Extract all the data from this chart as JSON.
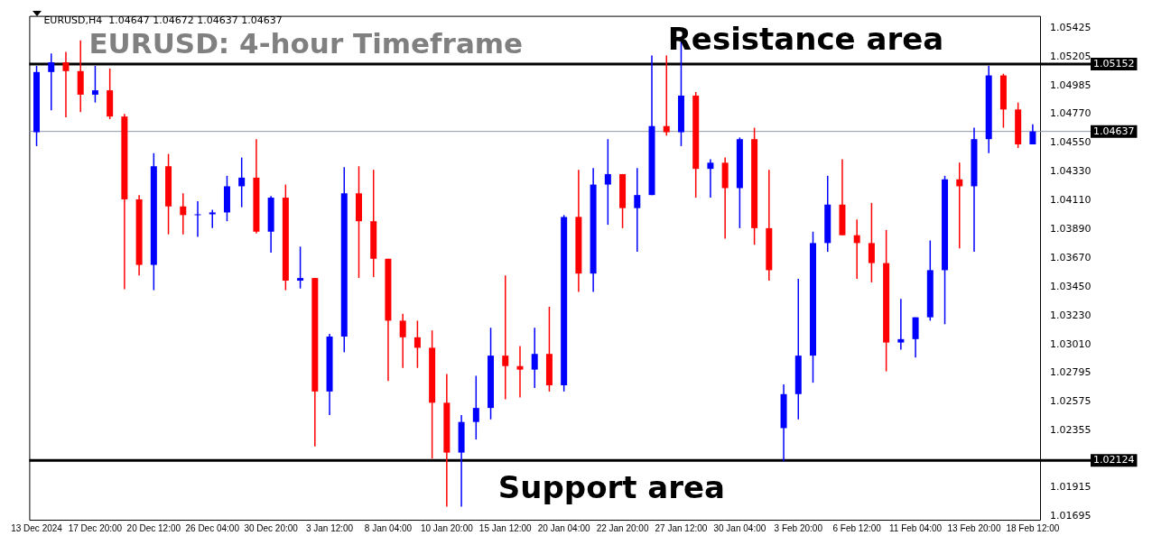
{
  "chart_data": {
    "type": "candlestick",
    "title": "EURUSD: 4-hour Timeframe",
    "annotations": [
      "EURUSD,H4  1.04647 1.04672 1.04637 1.04637",
      "Resistance area",
      "Support area"
    ],
    "categories": [
      "13 Dec 2024",
      null,
      null,
      null,
      "17 Dec 20:00",
      null,
      null,
      null,
      "20 Dec 12:00",
      null,
      null,
      null,
      "26 Dec 04:00",
      null,
      null,
      null,
      "30 Dec 20:00",
      null,
      null,
      null,
      "3 Jan 12:00",
      null,
      null,
      null,
      "8 Jan 04:00",
      null,
      null,
      null,
      "10 Jan 20:00",
      null,
      null,
      null,
      "15 Jan 12:00",
      null,
      null,
      null,
      "20 Jan 04:00",
      null,
      null,
      null,
      "22 Jan 20:00",
      null,
      null,
      null,
      "27 Jan 12:00",
      null,
      null,
      null,
      "30 Jan 04:00",
      null,
      null,
      null,
      "3 Feb 20:00",
      null,
      null,
      null,
      "6 Feb 12:00",
      null,
      null,
      null,
      "11 Feb 04:00",
      null,
      null,
      null,
      "13 Feb 20:00",
      null,
      null,
      null,
      "18 Feb 12:00"
    ],
    "ohlc": [
      [
        1.04631,
        1.05138,
        1.04525,
        1.05091
      ],
      [
        1.05091,
        1.05232,
        1.04798,
        1.05165
      ],
      [
        1.05165,
        1.05245,
        1.04745,
        1.05098
      ],
      [
        1.05098,
        1.05332,
        1.04785,
        1.04918
      ],
      [
        1.04918,
        1.05138,
        1.04858,
        1.04951
      ],
      [
        1.04951,
        1.05118,
        1.04731,
        1.04751
      ],
      [
        1.04751,
        1.04771,
        1.03431,
        1.04118
      ],
      [
        1.04118,
        1.04151,
        1.03537,
        1.03617
      ],
      [
        1.03617,
        1.04471,
        1.03424,
        1.04371
      ],
      [
        1.04371,
        1.04465,
        1.03851,
        1.04064
      ],
      [
        1.04064,
        1.04164,
        1.03851,
        1.03998
      ],
      [
        1.03998,
        1.04104,
        1.03831,
        1.04004
      ],
      [
        1.04004,
        1.04038,
        1.03898,
        1.04018
      ],
      [
        1.04018,
        1.04298,
        1.03951,
        1.04218
      ],
      [
        1.04218,
        1.04438,
        1.04058,
        1.04284
      ],
      [
        1.04284,
        1.04578,
        1.03858,
        1.03871
      ],
      [
        1.03871,
        1.04144,
        1.03711,
        1.04131
      ],
      [
        1.04131,
        1.04231,
        1.03424,
        1.03497
      ],
      [
        1.03497,
        1.03757,
        1.03437,
        1.03517
      ],
      [
        1.03517,
        1.03517,
        1.0223,
        1.0265
      ],
      [
        1.0265,
        1.0309,
        1.0247,
        1.0307
      ],
      [
        1.0307,
        1.04364,
        1.0295,
        1.04164
      ],
      [
        1.04164,
        1.04371,
        1.03517,
        1.03951
      ],
      [
        1.03951,
        1.04344,
        1.03524,
        1.03664
      ],
      [
        1.03664,
        1.03664,
        1.0273,
        1.03191
      ],
      [
        1.03191,
        1.03244,
        1.0283,
        1.03064
      ],
      [
        1.03064,
        1.03191,
        1.0283,
        1.02984
      ],
      [
        1.02984,
        1.03117,
        1.02137,
        1.02564
      ],
      [
        1.02564,
        1.02784,
        1.0177,
        1.02183
      ],
      [
        1.02183,
        1.0247,
        1.0177,
        1.02417
      ],
      [
        1.02417,
        1.0277,
        1.02283,
        1.02524
      ],
      [
        1.02524,
        1.03137,
        1.02437,
        1.02924
      ],
      [
        1.02924,
        1.03537,
        1.0259,
        1.02844
      ],
      [
        1.02844,
        1.02997,
        1.02604,
        1.02817
      ],
      [
        1.02817,
        1.03137,
        1.02677,
        1.02937
      ],
      [
        1.02937,
        1.03297,
        1.0265,
        1.02697
      ],
      [
        1.02697,
        1.03998,
        1.0265,
        1.03984
      ],
      [
        1.03984,
        1.04344,
        1.03411,
        1.03551
      ],
      [
        1.03551,
        1.04358,
        1.03411,
        1.04231
      ],
      [
        1.04231,
        1.04578,
        1.03924,
        1.04311
      ],
      [
        1.04311,
        1.04311,
        1.03898,
        1.04051
      ],
      [
        1.04051,
        1.04358,
        1.03717,
        1.04151
      ],
      [
        1.04151,
        1.05218,
        1.04151,
        1.04678
      ],
      [
        1.04678,
        1.05218,
        1.04605,
        1.04631
      ],
      [
        1.04631,
        1.05332,
        1.04525,
        1.04911
      ],
      [
        1.04911,
        1.04938,
        1.04131,
        1.04351
      ],
      [
        1.04351,
        1.04425,
        1.04131,
        1.04398
      ],
      [
        1.04398,
        1.04438,
        1.03818,
        1.04204
      ],
      [
        1.04204,
        1.04591,
        1.03898,
        1.04578
      ],
      [
        1.04578,
        1.04665,
        1.03771,
        1.03898
      ],
      [
        1.03898,
        1.04344,
        1.03497,
        1.03577
      ],
      [
        1.0237,
        1.02704,
        1.02117,
        1.0263
      ],
      [
        1.0263,
        1.03511,
        1.02437,
        1.02924
      ],
      [
        1.02924,
        1.03871,
        1.02717,
        1.03784
      ],
      [
        1.03784,
        1.04298,
        1.03717,
        1.04078
      ],
      [
        1.04078,
        1.04425,
        1.03844,
        1.03844
      ],
      [
        1.03844,
        1.03964,
        1.03511,
        1.03784
      ],
      [
        1.03784,
        1.04091,
        1.03484,
        1.03631
      ],
      [
        1.03631,
        1.03884,
        1.02804,
        1.03024
      ],
      [
        1.03024,
        1.03357,
        1.0297,
        1.0305
      ],
      [
        1.0305,
        1.03217,
        1.0291,
        1.03217
      ],
      [
        1.03217,
        1.03804,
        1.03191,
        1.03577
      ],
      [
        1.03577,
        1.04298,
        1.03164,
        1.04271
      ],
      [
        1.04271,
        1.04398,
        1.03744,
        1.04218
      ],
      [
        1.04218,
        1.04665,
        1.03717,
        1.04578
      ],
      [
        1.04578,
        1.05138,
        1.04471,
        1.05065
      ],
      [
        1.05065,
        1.05078,
        1.04665,
        1.04805
      ],
      [
        1.04805,
        1.04858,
        1.04511,
        1.04538
      ],
      [
        1.04538,
        1.04691,
        1.04538,
        1.04637
      ]
    ],
    "colors": [
      "#0000ff",
      "#0000ff",
      "#ff0000",
      "#ff0000",
      "#0000ff",
      "#ff0000",
      "#ff0000",
      "#ff0000",
      "#0000ff",
      "#ff0000",
      "#ff0000",
      "#0000ff",
      "#0000ff",
      "#0000ff",
      "#0000ff",
      "#ff0000",
      "#0000ff",
      "#ff0000",
      "#0000ff",
      "#ff0000",
      "#0000ff",
      "#0000ff",
      "#ff0000",
      "#ff0000",
      "#ff0000",
      "#ff0000",
      "#ff0000",
      "#ff0000",
      "#ff0000",
      "#0000ff",
      "#0000ff",
      "#0000ff",
      "#ff0000",
      "#ff0000",
      "#0000ff",
      "#ff0000",
      "#0000ff",
      "#ff0000",
      "#0000ff",
      "#0000ff",
      "#ff0000",
      "#0000ff",
      "#0000ff",
      "#ff0000",
      "#0000ff",
      "#ff0000",
      "#0000ff",
      "#ff0000",
      "#0000ff",
      "#ff0000",
      "#ff0000",
      "#0000ff",
      "#0000ff",
      "#0000ff",
      "#0000ff",
      "#ff0000",
      "#ff0000",
      "#ff0000",
      "#ff0000",
      "#0000ff",
      "#0000ff",
      "#0000ff",
      "#0000ff",
      "#ff0000",
      "#0000ff",
      "#0000ff",
      "#ff0000",
      "#ff0000",
      "#0000ff"
    ],
    "ylim": [
      1.0167,
      1.0552
    ],
    "yticks": [
      1.05425,
      1.05205,
      1.04985,
      {
        "value": 1.0477,
        "label": "1.04770"
      },
      {
        "value": 1.0455,
        "label": "1.04550"
      },
      {
        "value": 1.0433,
        "label": "1.04330"
      },
      {
        "value": 1.0411,
        "label": "1.04110"
      },
      {
        "value": 1.0389,
        "label": "1.03890"
      },
      {
        "value": 1.0367,
        "label": "1.03670"
      },
      {
        "value": 1.0345,
        "label": "1.03450"
      },
      {
        "value": 1.0323,
        "label": "1.03230"
      },
      {
        "value": 1.0301,
        "label": "1.03010"
      },
      1.02795,
      1.02575,
      1.02355,
      1.01915,
      1.01695
    ],
    "ref_lines": [
      {
        "axis": "y",
        "value": 1.05152,
        "label": "1.05152",
        "color": "#000000"
      },
      {
        "axis": "y",
        "value": 1.04637,
        "label": "1.04637",
        "color": "#8a9bab"
      },
      {
        "axis": "y",
        "value": 1.02124,
        "label": "1.02124",
        "color": "#000000"
      }
    ],
    "grid": false,
    "legend": false
  }
}
